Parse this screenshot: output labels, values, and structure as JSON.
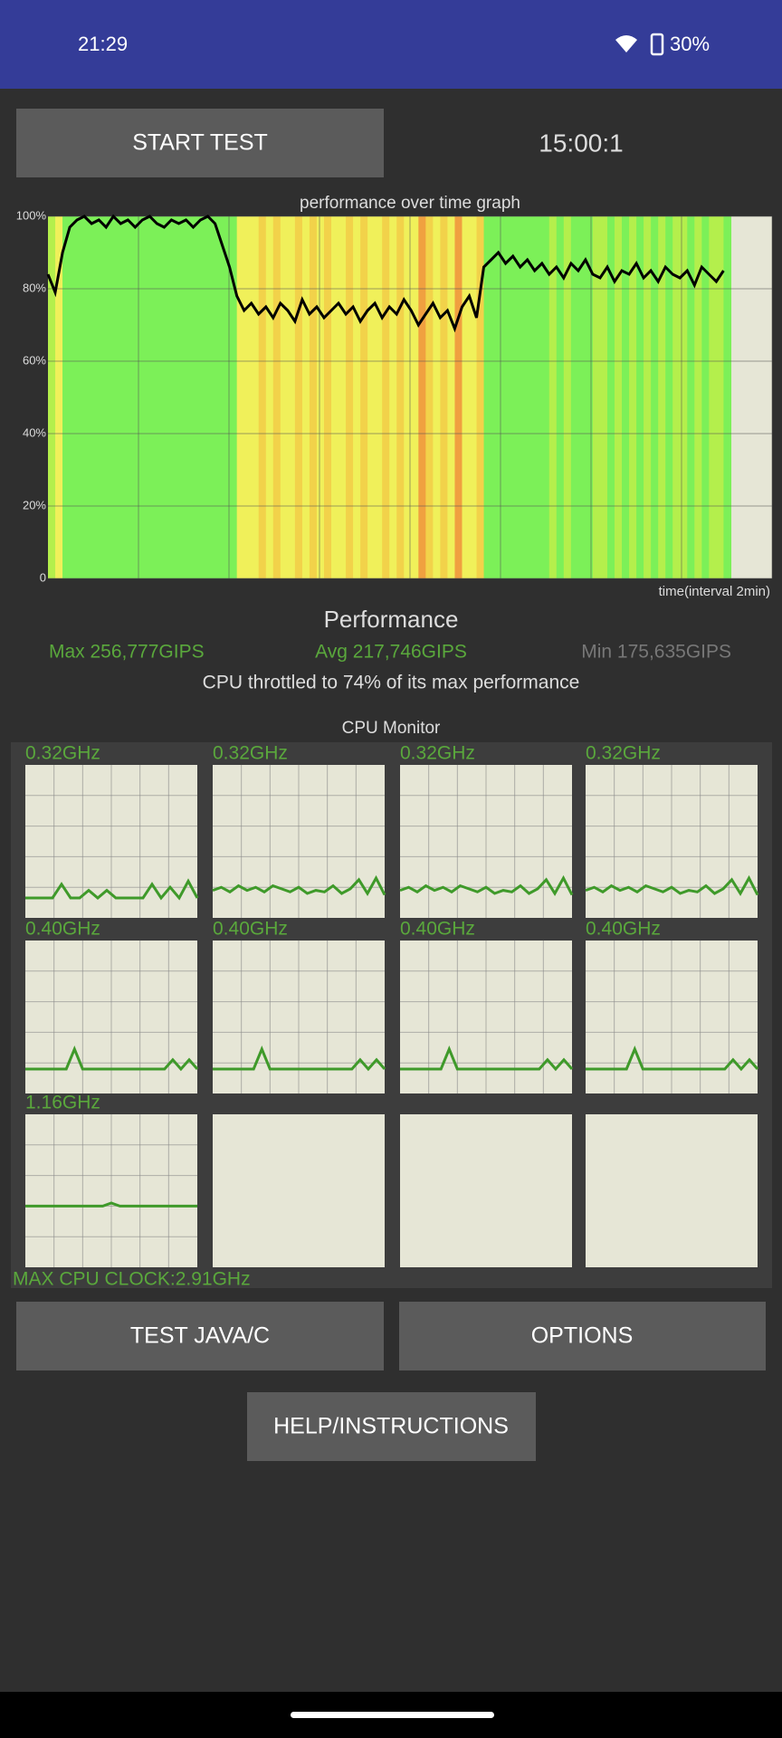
{
  "status_bar": {
    "time": "21:29",
    "battery": "30%"
  },
  "controls": {
    "start_button": "START TEST",
    "timer": "15:00:1",
    "java_button": "TEST JAVA/C",
    "options_button": "OPTIONS",
    "help_button": "HELP/INSTRUCTIONS"
  },
  "chart_data": {
    "type": "line",
    "title": "performance over time graph",
    "x_label": "time(interval 2min)",
    "ylim": [
      0,
      100
    ],
    "yticks": [
      0,
      {
        "value": 20,
        "label": "20%"
      },
      {
        "value": 40,
        "label": "40%"
      },
      {
        "value": 60,
        "label": "60%"
      },
      {
        "value": 80,
        "label": "80%"
      },
      {
        "value": 100,
        "label": "100%"
      }
    ],
    "grid": true,
    "color": "#000000",
    "values": [
      84,
      79,
      90,
      97,
      99,
      100,
      98,
      99,
      97,
      100,
      98,
      99,
      97,
      99,
      100,
      98,
      97,
      99,
      98,
      99,
      97,
      99,
      100,
      98,
      92,
      86,
      78,
      74,
      76,
      73,
      75,
      72,
      76,
      74,
      71,
      77,
      73,
      75,
      72,
      74,
      76,
      73,
      75,
      71,
      74,
      76,
      72,
      75,
      73,
      77,
      74,
      70,
      73,
      76,
      72,
      74,
      69,
      75,
      78,
      72,
      86,
      88,
      90,
      87,
      89,
      86,
      88,
      85,
      87,
      84,
      86,
      83,
      87,
      85,
      88,
      84,
      83,
      86,
      82,
      85,
      84,
      87,
      83,
      85,
      82,
      86,
      84,
      83,
      85,
      81,
      86,
      84,
      82,
      85
    ]
  },
  "performance": {
    "title": "Performance",
    "max": "Max 256,777GIPS",
    "avg": "Avg 217,746GIPS",
    "min": "Min 175,635GIPS",
    "throttle": "CPU throttled to 74% of its max performance"
  },
  "cpu_monitor": {
    "title": "CPU Monitor",
    "max_clock": "MAX CPU CLOCK:2.91GHz",
    "cores": [
      {
        "label": "0.32GHz",
        "values": [
          13,
          13,
          13,
          13,
          22,
          13,
          13,
          18,
          13,
          18,
          13,
          13,
          13,
          13,
          22,
          13,
          20,
          13,
          24,
          13
        ]
      },
      {
        "label": "0.32GHz",
        "values": [
          18,
          20,
          17,
          21,
          18,
          20,
          17,
          21,
          19,
          17,
          20,
          16,
          18,
          17,
          21,
          16,
          19,
          25,
          16,
          26,
          15
        ]
      },
      {
        "label": "0.32GHz",
        "values": [
          18,
          20,
          17,
          21,
          18,
          20,
          17,
          21,
          19,
          17,
          20,
          16,
          18,
          17,
          21,
          16,
          19,
          25,
          16,
          26,
          15
        ]
      },
      {
        "label": "0.32GHz",
        "values": [
          18,
          20,
          17,
          21,
          18,
          20,
          17,
          21,
          19,
          17,
          20,
          16,
          18,
          17,
          21,
          16,
          19,
          25,
          16,
          26,
          15
        ]
      },
      {
        "label": "0.40GHz",
        "values": [
          16,
          16,
          16,
          16,
          16,
          16,
          29,
          16,
          16,
          16,
          16,
          16,
          16,
          16,
          16,
          16,
          16,
          16,
          22,
          16,
          22,
          16
        ]
      },
      {
        "label": "0.40GHz",
        "values": [
          16,
          16,
          16,
          16,
          16,
          16,
          29,
          16,
          16,
          16,
          16,
          16,
          16,
          16,
          16,
          16,
          16,
          16,
          22,
          16,
          22,
          16
        ]
      },
      {
        "label": "0.40GHz",
        "values": [
          16,
          16,
          16,
          16,
          16,
          16,
          29,
          16,
          16,
          16,
          16,
          16,
          16,
          16,
          16,
          16,
          16,
          16,
          22,
          16,
          22,
          16
        ]
      },
      {
        "label": "0.40GHz",
        "values": [
          16,
          16,
          16,
          16,
          16,
          16,
          29,
          16,
          16,
          16,
          16,
          16,
          16,
          16,
          16,
          16,
          16,
          16,
          22,
          16,
          22,
          16
        ]
      },
      {
        "label": "1.16GHz",
        "values": [
          40,
          40,
          40,
          40,
          40,
          40,
          40,
          40,
          40,
          40,
          42,
          40,
          40,
          40,
          40,
          40,
          40,
          40,
          40,
          40,
          40
        ]
      }
    ]
  }
}
